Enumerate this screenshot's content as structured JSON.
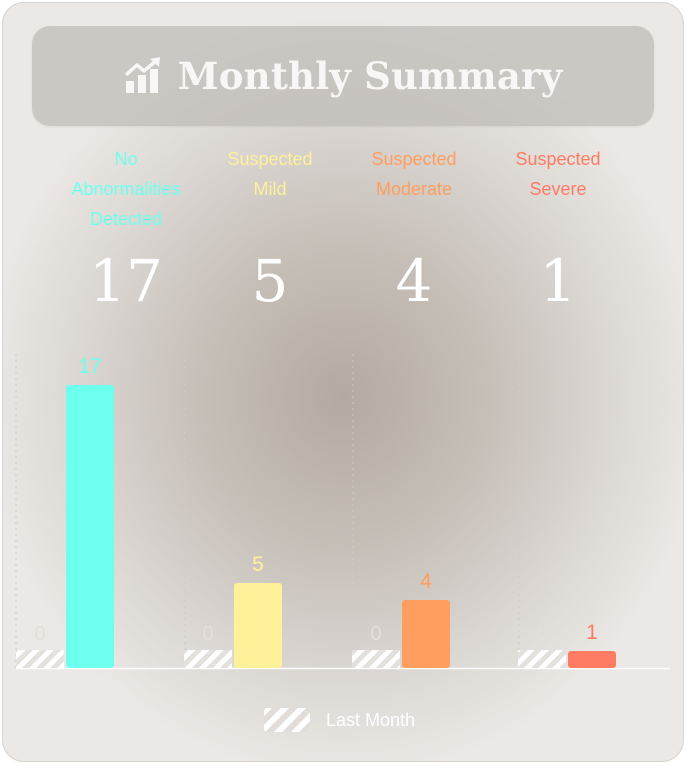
{
  "header": {
    "title": "Monthly Summary",
    "icon": "chart-increase-icon"
  },
  "categories": [
    {
      "label_lines": [
        "No",
        "Abnormalities",
        "Detected"
      ],
      "count": "17",
      "color": "#6effee"
    },
    {
      "label_lines": [
        "Suspected",
        "Mild"
      ],
      "count": "5",
      "color": "#fff09a"
    },
    {
      "label_lines": [
        "Suspected",
        "Moderate"
      ],
      "count": "4",
      "color": "#ff9e5e"
    },
    {
      "label_lines": [
        "Suspected",
        "Severe"
      ],
      "count": "1",
      "color": "#ff7b63"
    }
  ],
  "chart_data": {
    "type": "bar",
    "categories": [
      "No Abnormalities Detected",
      "Suspected Mild",
      "Suspected Moderate",
      "Suspected Severe"
    ],
    "series": [
      {
        "name": "Last Month",
        "values": [
          0,
          0,
          0,
          0
        ],
        "pattern": "hatched",
        "color": "#ffffff"
      },
      {
        "values": [
          17,
          5,
          4,
          1
        ],
        "colors": [
          "#6effee",
          "#fff09a",
          "#ff9e5e",
          "#ff7b63"
        ]
      }
    ],
    "ylim": [
      0,
      20
    ],
    "grid": false,
    "legend": "bottom-center"
  },
  "legend": {
    "label": "Last Month"
  }
}
